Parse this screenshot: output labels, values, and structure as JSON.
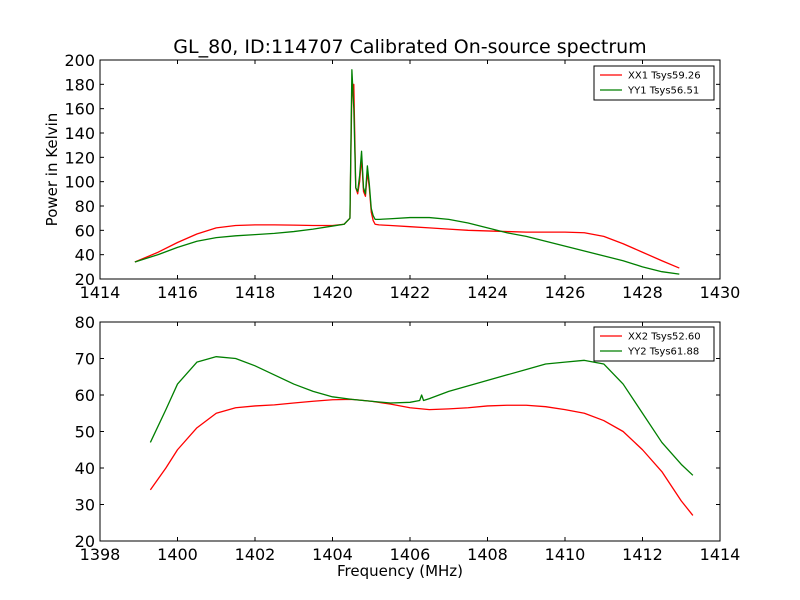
{
  "figure": {
    "title": "GL_80, ID:114707 Calibrated On-source spectrum"
  },
  "colors": {
    "xx": "#ff0000",
    "yy": "#007f00"
  },
  "chart_data": [
    {
      "type": "line",
      "title": "GL_80, ID:114707 Calibrated On-source spectrum",
      "xlabel": "",
      "ylabel": "Power in Kelvin",
      "xlim": [
        1414,
        1430
      ],
      "ylim": [
        20,
        200
      ],
      "xticks": [
        "1414",
        "1416",
        "1418",
        "1420",
        "1422",
        "1424",
        "1426",
        "1428",
        "1430"
      ],
      "yticks": [
        "20",
        "40",
        "60",
        "80",
        "100",
        "120",
        "140",
        "160",
        "180",
        "200"
      ],
      "legend": "top-right",
      "grid": false,
      "series": [
        {
          "name": "XX1 Tsys59.26",
          "color": "#ff0000",
          "x": [
            1414.9,
            1415.5,
            1416.0,
            1416.5,
            1417.0,
            1417.5,
            1418.0,
            1418.5,
            1419.0,
            1419.5,
            1420.0,
            1420.3,
            1420.45,
            1420.5,
            1420.55,
            1420.6,
            1420.65,
            1420.7,
            1420.75,
            1420.8,
            1420.85,
            1420.9,
            1420.95,
            1421.0,
            1421.05,
            1421.1,
            1421.2,
            1421.5,
            1422.0,
            1422.5,
            1423.0,
            1423.5,
            1424.0,
            1424.5,
            1425.0,
            1425.5,
            1426.0,
            1426.5,
            1427.0,
            1427.5,
            1428.0,
            1428.5,
            1428.95
          ],
          "y": [
            34,
            42,
            50,
            57,
            62,
            64,
            64.5,
            64.5,
            64.3,
            64,
            64,
            65,
            70,
            175,
            180,
            95,
            90,
            100,
            120,
            92,
            88,
            108,
            95,
            75,
            68,
            65,
            64.5,
            64,
            63,
            62,
            61,
            60,
            59.5,
            59,
            58.5,
            58.5,
            58.5,
            58,
            55,
            49,
            42,
            35,
            29
          ]
        },
        {
          "name": "YY1 Tsys56.51",
          "color": "#007f00",
          "x": [
            1414.9,
            1415.5,
            1416.0,
            1416.5,
            1417.0,
            1417.5,
            1418.0,
            1418.5,
            1419.0,
            1419.5,
            1420.0,
            1420.3,
            1420.45,
            1420.5,
            1420.55,
            1420.6,
            1420.65,
            1420.7,
            1420.75,
            1420.8,
            1420.85,
            1420.9,
            1420.95,
            1421.0,
            1421.05,
            1421.1,
            1421.2,
            1421.5,
            1422.0,
            1422.5,
            1423.0,
            1423.5,
            1424.0,
            1424.5,
            1425.0,
            1425.5,
            1426.0,
            1426.5,
            1427.0,
            1427.5,
            1428.0,
            1428.5,
            1428.95
          ],
          "y": [
            34,
            40,
            46,
            51,
            54,
            55.5,
            56.5,
            57.5,
            59,
            61,
            63.5,
            65,
            70,
            192,
            160,
            95,
            92,
            105,
            125,
            95,
            90,
            113,
            98,
            78,
            72,
            69,
            69,
            69.5,
            70.5,
            70.5,
            69,
            66,
            62,
            58,
            55,
            51,
            47,
            43,
            39,
            35,
            30,
            26,
            24
          ]
        }
      ]
    },
    {
      "type": "line",
      "title": "",
      "xlabel": "Frequency (MHz)",
      "ylabel": "",
      "xlim": [
        1398,
        1414
      ],
      "ylim": [
        20,
        80
      ],
      "xticks": [
        "1398",
        "1400",
        "1402",
        "1404",
        "1406",
        "1408",
        "1410",
        "1412",
        "1414"
      ],
      "yticks": [
        "20",
        "30",
        "40",
        "50",
        "60",
        "70",
        "80"
      ],
      "legend": "top-right",
      "grid": false,
      "series": [
        {
          "name": "XX2 Tsys52.60",
          "color": "#ff0000",
          "x": [
            1399.3,
            1399.7,
            1400.0,
            1400.5,
            1401.0,
            1401.5,
            1402.0,
            1402.5,
            1403.0,
            1403.5,
            1404.0,
            1404.5,
            1405.0,
            1405.5,
            1406.0,
            1406.5,
            1407.0,
            1407.5,
            1408.0,
            1408.5,
            1409.0,
            1409.5,
            1410.0,
            1410.5,
            1411.0,
            1411.5,
            1412.0,
            1412.5,
            1413.0,
            1413.3
          ],
          "y": [
            34,
            40,
            45,
            51,
            55,
            56.5,
            57,
            57.3,
            57.8,
            58.3,
            58.7,
            58.8,
            58.3,
            57.5,
            56.5,
            56,
            56.2,
            56.5,
            57,
            57.2,
            57.2,
            56.8,
            56,
            55,
            53,
            50,
            45,
            39,
            31,
            27
          ]
        },
        {
          "name": "YY2 Tsys61.88",
          "color": "#007f00",
          "x": [
            1399.3,
            1399.7,
            1400.0,
            1400.5,
            1401.0,
            1401.5,
            1402.0,
            1402.5,
            1403.0,
            1403.5,
            1404.0,
            1404.5,
            1405.0,
            1405.5,
            1406.0,
            1406.25,
            1406.3,
            1406.35,
            1406.5,
            1407.0,
            1407.5,
            1408.0,
            1408.5,
            1409.0,
            1409.5,
            1410.0,
            1410.5,
            1411.0,
            1411.5,
            1412.0,
            1412.5,
            1413.0,
            1413.3
          ],
          "y": [
            47,
            56,
            63,
            69,
            70.5,
            70,
            68,
            65.5,
            63,
            61,
            59.5,
            58.8,
            58.3,
            57.8,
            58,
            58.5,
            60,
            58.5,
            59,
            61,
            62.5,
            64,
            65.5,
            67,
            68.5,
            69,
            69.5,
            68.5,
            63,
            55,
            47,
            41,
            38
          ]
        }
      ]
    }
  ]
}
